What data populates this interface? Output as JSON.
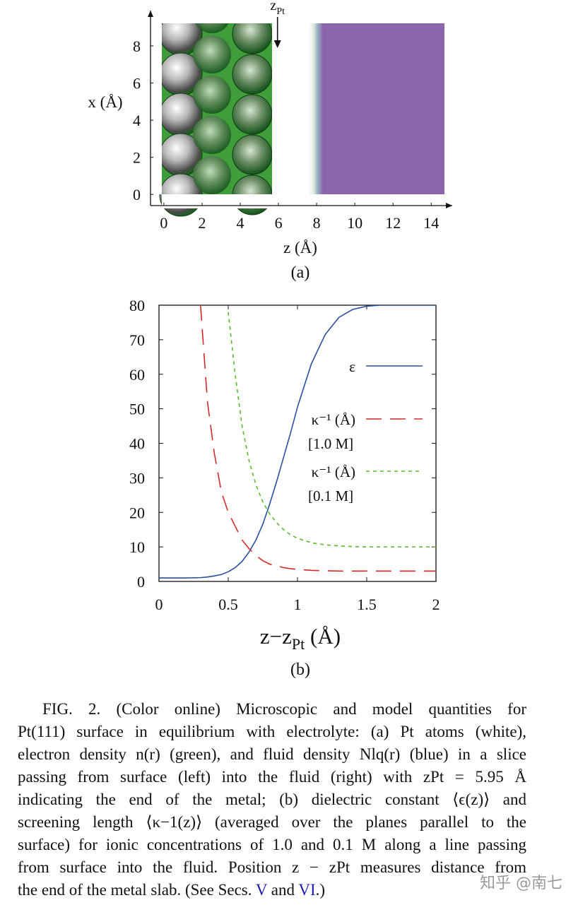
{
  "chart_data": [
    {
      "type": "image",
      "xlabel": "z (Å)",
      "ylabel": "x (Å)",
      "xlim": [
        -0.7,
        15.1
      ],
      "ylim": [
        -0.6,
        9.9
      ],
      "xticks": [
        0,
        2,
        4,
        6,
        8,
        10,
        12,
        14
      ],
      "yticks": [
        0,
        2,
        4,
        6,
        8
      ],
      "marker": {
        "main": "z",
        "sub": "Pt",
        "x": 5.95
      },
      "panel_label": "(a)"
    },
    {
      "type": "line",
      "xlabel": {
        "main": "z−z",
        "sub": "Pt",
        "tail": " (Å)"
      },
      "xlim": [
        0,
        2
      ],
      "ylim": [
        0,
        80
      ],
      "xticks": [
        0,
        0.5,
        1,
        1.5,
        2
      ],
      "yticks": [
        0,
        10,
        20,
        30,
        40,
        50,
        60,
        70,
        80
      ],
      "x": [
        0,
        0.1,
        0.2,
        0.3,
        0.35,
        0.4,
        0.45,
        0.5,
        0.55,
        0.6,
        0.65,
        0.7,
        0.75,
        0.8,
        0.85,
        0.9,
        0.95,
        1,
        1.1,
        1.2,
        1.3,
        1.4,
        1.5,
        1.6,
        1.7,
        1.8,
        1.9,
        2
      ],
      "series": [
        {
          "name": "ε",
          "color": "#2b4f9e",
          "style": "solid",
          "values": [
            1,
            1,
            1,
            1.1,
            1.3,
            1.6,
            2,
            2.8,
            4,
            5.8,
            8.5,
            12,
            16.6,
            22.5,
            29,
            36,
            43,
            50.5,
            63,
            71.5,
            76.5,
            78.8,
            79.7,
            80,
            80,
            80,
            80,
            80
          ]
        },
        {
          "name": "κ⁻¹ (Å)",
          "note": "[1.0 M]",
          "color": "#d42a2a",
          "style": "dashed",
          "values": [
            null,
            null,
            null,
            80,
            52,
            37,
            26,
            20,
            16,
            12,
            9.5,
            7.5,
            6,
            5,
            4.5,
            4,
            3.7,
            3.5,
            3.2,
            3.1,
            3,
            3,
            3,
            3,
            3,
            3,
            3,
            3
          ]
        },
        {
          "name": "κ⁻¹ (Å)",
          "note": "[0.1 M]",
          "color": "#5cb82e",
          "style": "dotted",
          "values": [
            null,
            null,
            null,
            null,
            null,
            null,
            null,
            78,
            60,
            45,
            35,
            28,
            23,
            19.5,
            17,
            15,
            13.5,
            12.5,
            11.2,
            10.6,
            10.3,
            10.1,
            10,
            10,
            10,
            10,
            10,
            10
          ]
        }
      ],
      "panel_label": "(b)"
    }
  ],
  "caption": {
    "lines": [
      "FIG. 2. (Color online) Microscopic and model quantities for",
      "Pt(111) surface in equilibrium with electrolyte: (a) Pt atoms (white),",
      "electron density n(r) (green), and fluid density Nlq(r) (blue) in a slice",
      "passing from surface (left) into the fluid (right) with zPt = 5.95 Å",
      "indicating the end of the metal; (b) dielectric constant ⟨ϵ(z)⟩ and",
      "screening length ⟨κ−1(z)⟩ (averaged over the planes parallel to the",
      "surface) for ionic concentrations of 1.0 and 0.1 M along a line passing",
      "from surface into the fluid. Position z − zPt measures distance from"
    ],
    "last_line": [
      "the end of the metal slab. (See Secs. ",
      "V",
      " and ",
      "VI",
      ".)"
    ],
    "link_color": "#1a1ab0"
  },
  "watermark": "知乎 @南七"
}
